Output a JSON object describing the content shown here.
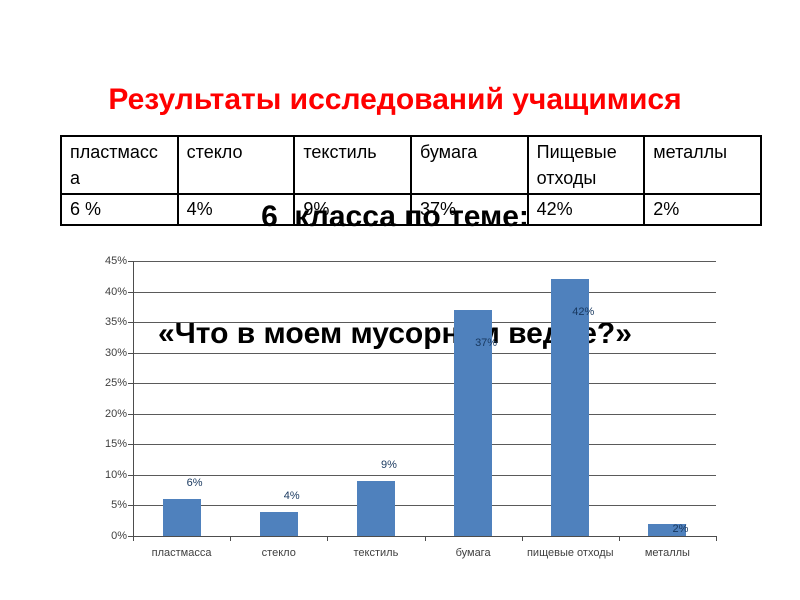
{
  "slide": {
    "title": {
      "line1": "Результаты исследований учащимися",
      "line2": "6  класса по теме:",
      "line3": "«Что в моем мусорном ведре?»"
    },
    "colors": {
      "title_line1": "#ff0000",
      "title_rest": "#000000"
    }
  },
  "table": {
    "headers": [
      "пластмасса",
      "стекло",
      "текстиль",
      "бумага",
      "Пищевые отходы",
      "металлы"
    ],
    "values": [
      "6 %",
      "4%",
      "9%",
      "37%",
      "42%",
      "2%"
    ]
  },
  "chart_data": {
    "type": "bar",
    "title": "",
    "xlabel": "",
    "ylabel": "",
    "categories": [
      "пластмасса",
      "стекло",
      "текстиль",
      "бумага",
      "пищевые отходы",
      "металлы"
    ],
    "values": [
      6,
      4,
      9,
      37,
      42,
      2
    ],
    "data_labels": [
      "6%",
      "4%",
      "9%",
      "37%",
      "42%",
      "2%"
    ],
    "label_placements": [
      "above",
      "above",
      "above",
      "inside",
      "inside",
      "center"
    ],
    "y_ticks": [
      "0%",
      "5%",
      "10%",
      "15%",
      "20%",
      "25%",
      "30%",
      "35%",
      "40%",
      "45%"
    ],
    "ylim": [
      0,
      45
    ],
    "y_step": 5,
    "grid": true,
    "legend": "none",
    "bar_color": "#4f81bd",
    "gridline_color": "#5a5a5a",
    "axis_color": "#4d4d4d",
    "tick_label_color": "#3f3f3f",
    "data_label_color": "#17375e",
    "category_label_color": "#3f3f3f"
  }
}
